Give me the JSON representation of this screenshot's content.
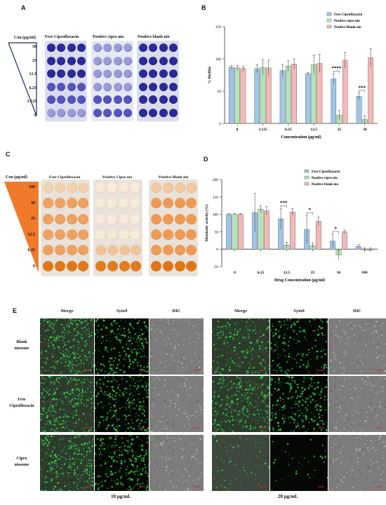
{
  "panels": {
    "A": {
      "letter": "A",
      "conc_header": "Con (µg/ml)",
      "concentrations": [
        "50",
        "25",
        "12.5",
        "6.25",
        "3.125",
        "0"
      ],
      "plate_titles": [
        "Free Ciprofloxacin",
        "Positive cipro  nio",
        "Positive blank nio"
      ],
      "colors": {
        "dark": "#2a2a9a",
        "mid": "#5555c0",
        "light": "#9b9bd8"
      }
    },
    "B": {
      "letter": "B"
    },
    "C": {
      "letter": "C",
      "conc_header": "Con (µg/ml)",
      "concentrations": [
        "100",
        "50",
        "25",
        "12.5",
        "6.25",
        "0"
      ],
      "plate_titles": [
        "Free Ciprofloxacin",
        "Positive Cipro nio",
        "Positive Blank nio"
      ],
      "colors": {
        "triangle": "#f07a2a",
        "orange": "#e8801e",
        "pale": "#f6e3cc"
      }
    },
    "D": {
      "letter": "D"
    },
    "E": {
      "letter": "E",
      "column_headers": [
        "Merge",
        "Syto9",
        "DIC"
      ],
      "row_labels": [
        [
          "Blank",
          "niosome"
        ],
        [
          "Free",
          "Ciprofloxacin"
        ],
        [
          "Cipro",
          "niosome"
        ]
      ],
      "group_labels": [
        "10 µg/mL",
        "20 µg/mL"
      ],
      "colors": {
        "green": "#39d14a",
        "dic": "#8a8a8a",
        "scale": "#e0202a"
      }
    }
  },
  "chart_data": [
    {
      "type": "bar",
      "panel": "B",
      "xlabel": "Concentration (µg/ml)",
      "ylabel": "% Biofilm",
      "ylim": [
        0,
        150
      ],
      "yticks": [
        0,
        50,
        100,
        150
      ],
      "categories": [
        "0",
        "3.125",
        "6.25",
        "12.5",
        "25",
        "50"
      ],
      "series": [
        {
          "name": "Free Ciprofloxacin",
          "color": "#9fc5e8",
          "values": [
            87,
            85,
            82,
            77,
            69,
            42
          ],
          "errors": [
            3,
            6,
            9,
            2,
            8,
            5
          ]
        },
        {
          "name": "Positive cipro nio",
          "color": "#b6e3b6",
          "values": [
            86,
            87,
            89,
            91,
            13,
            6
          ],
          "errors": [
            4,
            12,
            8,
            15,
            7,
            6
          ]
        },
        {
          "name": "Positive Blank nio",
          "color": "#f4b8b8",
          "values": [
            85,
            86,
            92,
            93,
            98,
            102
          ],
          "errors": [
            4,
            12,
            8,
            14,
            12,
            14
          ]
        }
      ],
      "annotations": [
        {
          "category": "25",
          "text": "****"
        },
        {
          "category": "50",
          "text": "***"
        }
      ],
      "legend": "top-right"
    },
    {
      "type": "bar",
      "panel": "D",
      "xlabel": "Drug Concentration (µg/ml)",
      "ylabel": "Metabolic activity (%)",
      "ylim": [
        -50,
        200
      ],
      "yticks": [
        -50,
        0,
        50,
        100,
        150,
        200
      ],
      "categories": [
        "0",
        "6.25",
        "12.5",
        "25",
        "50",
        "100"
      ],
      "series": [
        {
          "name": "Free Ciprofloxacin",
          "color": "#9fc5e8",
          "values": [
            100,
            105,
            87,
            57,
            23,
            8
          ],
          "errors": [
            2,
            55,
            30,
            40,
            20,
            5
          ]
        },
        {
          "name": "Positive cipro nio",
          "color": "#b6e3b6",
          "values": [
            100,
            115,
            12,
            10,
            -17,
            -2
          ],
          "errors": [
            2,
            10,
            8,
            8,
            15,
            6
          ]
        },
        {
          "name": "Positive blank nio",
          "color": "#f4b8b8",
          "values": [
            100,
            110,
            107,
            80,
            50,
            -3
          ],
          "errors": [
            2,
            12,
            10,
            12,
            5,
            6
          ]
        }
      ],
      "annotations": [
        {
          "category": "12.5",
          "text": "***"
        },
        {
          "category": "25",
          "text": "*"
        },
        {
          "category": "50",
          "text": "*"
        }
      ],
      "legend": "top-right"
    }
  ]
}
